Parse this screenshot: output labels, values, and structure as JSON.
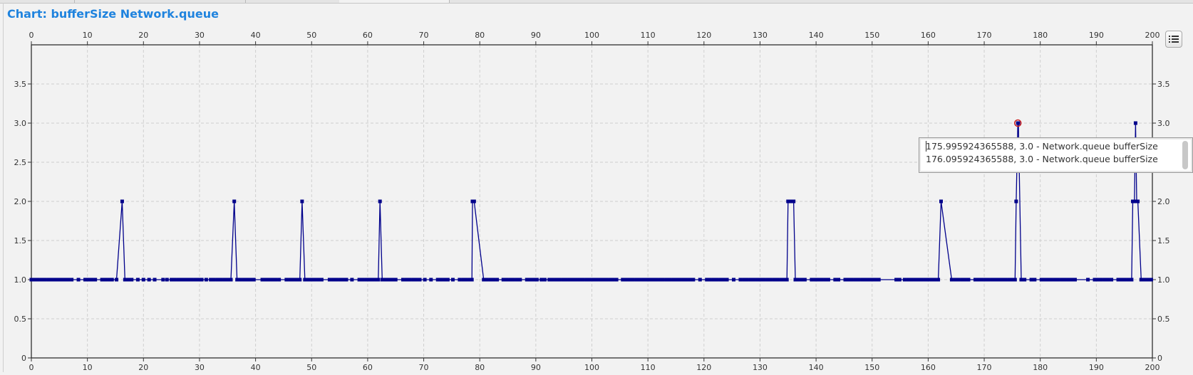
{
  "title": "Chart: bufferSize Network.queue",
  "legend_button_icon": "list-icon",
  "tooltip": {
    "lines": [
      "175.995924365588, 3.0 - Network.queue bufferSize",
      "176.095924365588, 3.0 - Network.queue bufferSize"
    ]
  },
  "colors": {
    "series": "#00008b",
    "title": "#1f83de",
    "highlight": "#cc2222",
    "grid": "#cfcfcf"
  },
  "chart_data": {
    "type": "line",
    "xlim": [
      0,
      200
    ],
    "ylim": [
      0,
      4
    ],
    "x_ticks": [
      0,
      10,
      20,
      30,
      40,
      50,
      60,
      70,
      80,
      90,
      100,
      110,
      120,
      130,
      140,
      150,
      160,
      170,
      180,
      190,
      200
    ],
    "y_ticks": [
      "0",
      "0.5",
      "1.0",
      "1.5",
      "2.0",
      "2.5",
      "3.0",
      "3.5"
    ],
    "grid": true,
    "series": [
      {
        "name": "Network.queue bufferSize",
        "points": [
          [
            0,
            1
          ],
          [
            0.6,
            1
          ],
          [
            1.2,
            1
          ],
          [
            1.8,
            1
          ],
          [
            2.4,
            1
          ],
          [
            3,
            1
          ],
          [
            3.6,
            1
          ],
          [
            4.2,
            1
          ],
          [
            4.8,
            1
          ],
          [
            5.4,
            1
          ],
          [
            6,
            1
          ],
          [
            6.6,
            1
          ],
          [
            7.2,
            1
          ],
          [
            8.4,
            1
          ],
          [
            9.6,
            1
          ],
          [
            10.2,
            1
          ],
          [
            10.8,
            1
          ],
          [
            11.4,
            1
          ],
          [
            12.6,
            1
          ],
          [
            13.2,
            1
          ],
          [
            13.8,
            1
          ],
          [
            14.4,
            1
          ],
          [
            15.2,
            1
          ],
          [
            16.2,
            2
          ],
          [
            16.7,
            1
          ],
          [
            17.3,
            1
          ],
          [
            17.9,
            1
          ],
          [
            19,
            1
          ],
          [
            20,
            1
          ],
          [
            21,
            1
          ],
          [
            22,
            1
          ],
          [
            23.5,
            1
          ],
          [
            24.2,
            1
          ],
          [
            25,
            1
          ],
          [
            25.6,
            1
          ],
          [
            26.2,
            1
          ],
          [
            26.8,
            1
          ],
          [
            27.4,
            1
          ],
          [
            28,
            1
          ],
          [
            28.6,
            1
          ],
          [
            29.2,
            1
          ],
          [
            29.8,
            1
          ],
          [
            30.4,
            1
          ],
          [
            31.2,
            1
          ],
          [
            32,
            1
          ],
          [
            32.6,
            1
          ],
          [
            33.2,
            1
          ],
          [
            33.8,
            1
          ],
          [
            34.4,
            1
          ],
          [
            35,
            1
          ],
          [
            35.6,
            1
          ],
          [
            36.2,
            2
          ],
          [
            36.7,
            1
          ],
          [
            37.3,
            1
          ],
          [
            37.9,
            1
          ],
          [
            38.5,
            1
          ],
          [
            39.1,
            1
          ],
          [
            39.7,
            1
          ],
          [
            41.2,
            1
          ],
          [
            41.8,
            1
          ],
          [
            42.4,
            1
          ],
          [
            43,
            1
          ],
          [
            43.6,
            1
          ],
          [
            44.2,
            1
          ],
          [
            45.5,
            1
          ],
          [
            46.1,
            1
          ],
          [
            46.7,
            1
          ],
          [
            47.3,
            1
          ],
          [
            47.9,
            1
          ],
          [
            48.3,
            2
          ],
          [
            48.8,
            1
          ],
          [
            49.4,
            1
          ],
          [
            50,
            1
          ],
          [
            50.6,
            1
          ],
          [
            51.2,
            1
          ],
          [
            51.8,
            1
          ],
          [
            53.2,
            1
          ],
          [
            53.8,
            1
          ],
          [
            54.4,
            1
          ],
          [
            55,
            1
          ],
          [
            55.6,
            1
          ],
          [
            56.2,
            1
          ],
          [
            57.2,
            1
          ],
          [
            58.5,
            1
          ],
          [
            59.1,
            1
          ],
          [
            59.7,
            1
          ],
          [
            60.3,
            1
          ],
          [
            60.9,
            1
          ],
          [
            61.5,
            1
          ],
          [
            61.9,
            1
          ],
          [
            62.2,
            2
          ],
          [
            62.6,
            1
          ],
          [
            63.2,
            1
          ],
          [
            63.8,
            1
          ],
          [
            64.4,
            1
          ],
          [
            65,
            1
          ],
          [
            66.3,
            1
          ],
          [
            66.9,
            1
          ],
          [
            67.5,
            1
          ],
          [
            68.1,
            1
          ],
          [
            68.7,
            1
          ],
          [
            69.3,
            1
          ],
          [
            70.2,
            1
          ],
          [
            71.3,
            1
          ],
          [
            72.5,
            1
          ],
          [
            73.1,
            1
          ],
          [
            73.7,
            1
          ],
          [
            74.3,
            1
          ],
          [
            75.2,
            1
          ],
          [
            76.4,
            1
          ],
          [
            77,
            1
          ],
          [
            77.6,
            1
          ],
          [
            78.2,
            1
          ],
          [
            78.6,
            1
          ],
          [
            78.7,
            2
          ],
          [
            79,
            2
          ],
          [
            80.7,
            1
          ],
          [
            81.3,
            1
          ],
          [
            81.9,
            1
          ],
          [
            82.5,
            1
          ],
          [
            83.1,
            1
          ],
          [
            84.2,
            1
          ],
          [
            84.8,
            1
          ],
          [
            85.4,
            1
          ],
          [
            86,
            1
          ],
          [
            86.6,
            1
          ],
          [
            87.2,
            1
          ],
          [
            88.4,
            1
          ],
          [
            89,
            1
          ],
          [
            89.6,
            1
          ],
          [
            90.2,
            1
          ],
          [
            91,
            1
          ],
          [
            91.6,
            1
          ],
          [
            92.4,
            1
          ],
          [
            93,
            1
          ],
          [
            93.6,
            1
          ],
          [
            94.2,
            1
          ],
          [
            94.8,
            1
          ],
          [
            95.4,
            1
          ],
          [
            96,
            1
          ],
          [
            96.6,
            1
          ],
          [
            97.2,
            1
          ],
          [
            97.8,
            1
          ],
          [
            98.4,
            1
          ],
          [
            99,
            1
          ],
          [
            99.6,
            1
          ],
          [
            100.2,
            1
          ],
          [
            100.8,
            1
          ],
          [
            101.4,
            1
          ],
          [
            102,
            1
          ],
          [
            102.6,
            1
          ],
          [
            103.2,
            1
          ],
          [
            103.8,
            1
          ],
          [
            104.4,
            1
          ],
          [
            105.5,
            1
          ],
          [
            106.1,
            1
          ],
          [
            106.7,
            1
          ],
          [
            107.3,
            1
          ],
          [
            107.9,
            1
          ],
          [
            108.5,
            1
          ],
          [
            109.1,
            1
          ],
          [
            109.7,
            1
          ],
          [
            110.3,
            1
          ],
          [
            110.9,
            1
          ],
          [
            111.5,
            1
          ],
          [
            112.1,
            1
          ],
          [
            112.7,
            1
          ],
          [
            113.3,
            1
          ],
          [
            113.9,
            1
          ],
          [
            114.5,
            1
          ],
          [
            115.1,
            1
          ],
          [
            115.7,
            1
          ],
          [
            116.3,
            1
          ],
          [
            116.9,
            1
          ],
          [
            117.5,
            1
          ],
          [
            118.1,
            1
          ],
          [
            119.3,
            1
          ],
          [
            120.5,
            1
          ],
          [
            121.1,
            1
          ],
          [
            121.7,
            1
          ],
          [
            122.3,
            1
          ],
          [
            122.9,
            1
          ],
          [
            123.5,
            1
          ],
          [
            124.1,
            1
          ],
          [
            125.3,
            1
          ],
          [
            126.5,
            1
          ],
          [
            127.1,
            1
          ],
          [
            127.7,
            1
          ],
          [
            128.3,
            1
          ],
          [
            128.9,
            1
          ],
          [
            129.5,
            1
          ],
          [
            130.1,
            1
          ],
          [
            130.7,
            1
          ],
          [
            131.3,
            1
          ],
          [
            131.9,
            1
          ],
          [
            132.5,
            1
          ],
          [
            133.1,
            1
          ],
          [
            133.7,
            1
          ],
          [
            134.3,
            1
          ],
          [
            134.8,
            1
          ],
          [
            135,
            2
          ],
          [
            135.5,
            2
          ],
          [
            136,
            2
          ],
          [
            136.3,
            1
          ],
          [
            136.8,
            1
          ],
          [
            137.4,
            1
          ],
          [
            138,
            1
          ],
          [
            139.2,
            1
          ],
          [
            139.8,
            1
          ],
          [
            140.4,
            1
          ],
          [
            141,
            1
          ],
          [
            141.6,
            1
          ],
          [
            142.2,
            1
          ],
          [
            143.4,
            1
          ],
          [
            144,
            1
          ],
          [
            145.2,
            1
          ],
          [
            145.8,
            1
          ],
          [
            146.4,
            1
          ],
          [
            147,
            1
          ],
          [
            147.6,
            1
          ],
          [
            148.2,
            1
          ],
          [
            148.8,
            1
          ],
          [
            149.4,
            1
          ],
          [
            150,
            1
          ],
          [
            150.6,
            1
          ],
          [
            151.2,
            1
          ],
          [
            154.3,
            1
          ],
          [
            154.9,
            1
          ],
          [
            155.8,
            1
          ],
          [
            156.4,
            1
          ],
          [
            157,
            1
          ],
          [
            157.6,
            1
          ],
          [
            158.2,
            1
          ],
          [
            158.8,
            1
          ],
          [
            159.4,
            1
          ],
          [
            160,
            1
          ],
          [
            160.6,
            1
          ],
          [
            161.2,
            1
          ],
          [
            161.8,
            1
          ],
          [
            162.3,
            2
          ],
          [
            164.2,
            1
          ],
          [
            164.8,
            1
          ],
          [
            165.4,
            1
          ],
          [
            166,
            1
          ],
          [
            166.6,
            1
          ],
          [
            167.2,
            1
          ],
          [
            168.4,
            1
          ],
          [
            169,
            1
          ],
          [
            169.6,
            1
          ],
          [
            170.2,
            1
          ],
          [
            170.8,
            1
          ],
          [
            171.4,
            1
          ],
          [
            172,
            1
          ],
          [
            172.6,
            1
          ],
          [
            173.2,
            1
          ],
          [
            173.8,
            1
          ],
          [
            174.4,
            1
          ],
          [
            175,
            1
          ],
          [
            175.5,
            1
          ],
          [
            175.7,
            2
          ],
          [
            175.996,
            3
          ],
          [
            176.096,
            3
          ],
          [
            176.6,
            1
          ],
          [
            177.2,
            1
          ],
          [
            178.4,
            1
          ],
          [
            179,
            1
          ],
          [
            180.2,
            1
          ],
          [
            180.8,
            1
          ],
          [
            181.4,
            1
          ],
          [
            182,
            1
          ],
          [
            182.6,
            1
          ],
          [
            183.2,
            1
          ],
          [
            183.8,
            1
          ],
          [
            184.4,
            1
          ],
          [
            185,
            1
          ],
          [
            185.6,
            1
          ],
          [
            186.2,
            1
          ],
          [
            188.5,
            1
          ],
          [
            189.7,
            1
          ],
          [
            190.3,
            1
          ],
          [
            190.9,
            1
          ],
          [
            191.5,
            1
          ],
          [
            192.1,
            1
          ],
          [
            192.7,
            1
          ],
          [
            193.9,
            1
          ],
          [
            194.5,
            1
          ],
          [
            195.1,
            1
          ],
          [
            195.7,
            1
          ],
          [
            196.3,
            1
          ],
          [
            196.5,
            2
          ],
          [
            196.8,
            2
          ],
          [
            197,
            3
          ],
          [
            197.2,
            2
          ],
          [
            197.4,
            2
          ],
          [
            198,
            1
          ],
          [
            198.6,
            1
          ],
          [
            199.2,
            1
          ],
          [
            199.8,
            1
          ]
        ]
      }
    ],
    "highlighted_point": [
      175.996,
      3.0
    ]
  }
}
